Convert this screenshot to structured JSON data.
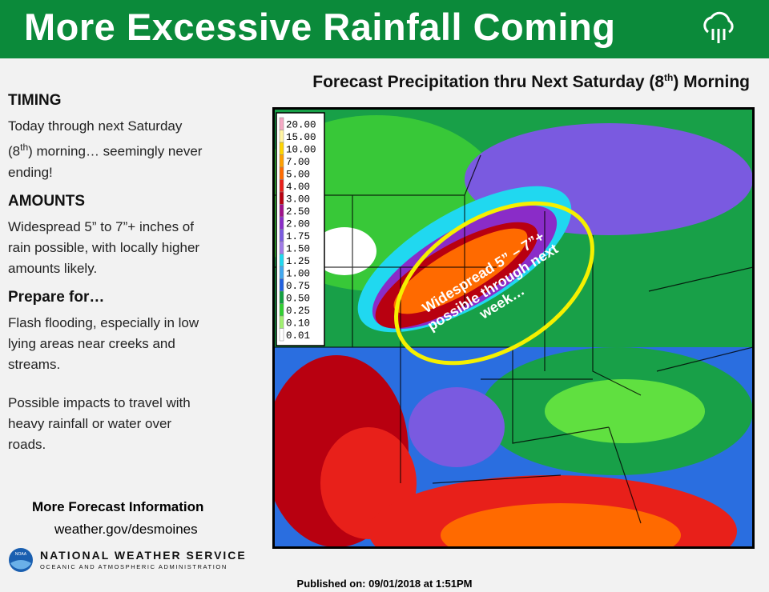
{
  "header": {
    "title": "More Excessive Rainfall Coming"
  },
  "map_title": {
    "parts": [
      "Forecast Precipitation thru Next Saturday (8",
      "th",
      ") Morning"
    ]
  },
  "sidebar": {
    "timing": {
      "heading": "TIMING",
      "parts": [
        "Today through next Saturday (8",
        "th",
        ") morning… seemingly never ending!"
      ]
    },
    "amounts": {
      "heading": "AMOUNTS",
      "text": "Widespread 5” to 7”+ inches of rain possible, with locally higher amounts likely."
    },
    "prepare": {
      "heading": "Prepare for…",
      "texts": [
        "Flash flooding, especially in low lying areas near creeks and streams.",
        "Possible impacts to travel with heavy rainfall or water over roads."
      ]
    },
    "more_info": {
      "heading": "More Forecast Information",
      "link": "weather.gov/desmoines"
    },
    "agency": {
      "logo": "NOAA",
      "name": "NATIONAL WEATHER SERVICE",
      "sub": "OCEANIC AND ATMOSPHERIC ADMINISTRATION"
    }
  },
  "map": {
    "annotation": [
      "Widespread 5” – 7”+",
      "possible through next",
      "week…"
    ],
    "legend": [
      {
        "label": "20.00",
        "color": "#f5a9c4"
      },
      {
        "label": "15.00",
        "color": "#fff3a0"
      },
      {
        "label": "10.00",
        "color": "#ffd400"
      },
      {
        "label": "7.00",
        "color": "#ffa000"
      },
      {
        "label": "5.00",
        "color": "#ff6a00"
      },
      {
        "label": "4.00",
        "color": "#e8201a"
      },
      {
        "label": "3.00",
        "color": "#b80010"
      },
      {
        "label": "2.50",
        "color": "#a0108a"
      },
      {
        "label": "2.00",
        "color": "#8a2cc8"
      },
      {
        "label": "1.75",
        "color": "#7a5ae0"
      },
      {
        "label": "1.50",
        "color": "#a07ae8"
      },
      {
        "label": "1.25",
        "color": "#20d8f0"
      },
      {
        "label": "1.00",
        "color": "#40a8f0"
      },
      {
        "label": "0.75",
        "color": "#2060e0"
      },
      {
        "label": "0.50",
        "color": "#10a040"
      },
      {
        "label": "0.25",
        "color": "#30d030"
      },
      {
        "label": "0.10",
        "color": "#a0f070"
      },
      {
        "label": "0.01",
        "color": "#ffffff"
      }
    ]
  },
  "footer": {
    "published": "Published on: 09/01/2018 at 1:51PM"
  }
}
